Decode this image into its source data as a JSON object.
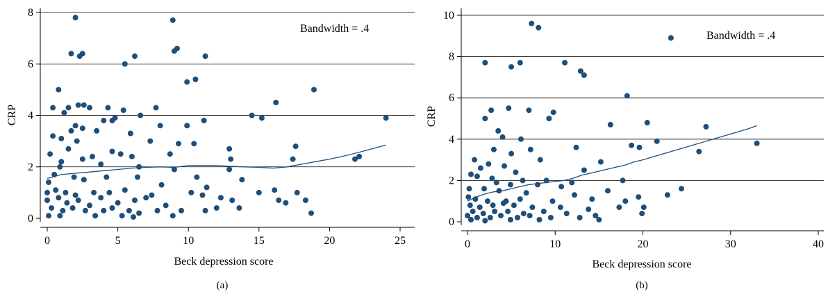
{
  "chart_data": [
    {
      "type": "scatter",
      "panel_label": "(a)",
      "xlabel": "Beck depression score",
      "ylabel": "CRP",
      "annotation": "Bandwidth = .4",
      "xlim": [
        0,
        25
      ],
      "ylim": [
        0,
        8
      ],
      "xticks": [
        0,
        5,
        10,
        15,
        20,
        25
      ],
      "yticks": [
        0,
        2,
        4,
        6,
        8
      ],
      "grid": "horizontal",
      "marker_color": "#1f4e79",
      "line_color": "#1f4e79",
      "points": [
        [
          2.0,
          7.8
        ],
        [
          8.9,
          7.7
        ],
        [
          9.2,
          6.6
        ],
        [
          9.0,
          6.5
        ],
        [
          1.7,
          6.4
        ],
        [
          2.5,
          6.4
        ],
        [
          2.3,
          6.3
        ],
        [
          6.2,
          6.3
        ],
        [
          11.2,
          6.3
        ],
        [
          5.5,
          6.0
        ],
        [
          10.5,
          5.4
        ],
        [
          9.9,
          5.3
        ],
        [
          0.8,
          5.0
        ],
        [
          18.9,
          5.0
        ],
        [
          16.2,
          4.5
        ],
        [
          2.2,
          4.4
        ],
        [
          2.6,
          4.4
        ],
        [
          0.4,
          4.3
        ],
        [
          1.5,
          4.3
        ],
        [
          3.0,
          4.3
        ],
        [
          4.3,
          4.3
        ],
        [
          5.4,
          4.2
        ],
        [
          7.7,
          4.3
        ],
        [
          1.2,
          4.1
        ],
        [
          6.6,
          4.0
        ],
        [
          14.5,
          4.0
        ],
        [
          15.2,
          3.9
        ],
        [
          24.0,
          3.9
        ],
        [
          4.8,
          3.9
        ],
        [
          11.1,
          3.8
        ],
        [
          4.6,
          3.8
        ],
        [
          4.0,
          3.8
        ],
        [
          2.0,
          3.6
        ],
        [
          8.0,
          3.6
        ],
        [
          9.9,
          3.6
        ],
        [
          1.7,
          3.4
        ],
        [
          2.5,
          3.5
        ],
        [
          3.5,
          3.4
        ],
        [
          5.9,
          3.3
        ],
        [
          0.4,
          3.2
        ],
        [
          1.0,
          3.1
        ],
        [
          2.1,
          3.0
        ],
        [
          7.3,
          3.0
        ],
        [
          10.4,
          2.9
        ],
        [
          9.3,
          2.9
        ],
        [
          17.6,
          2.8
        ],
        [
          0.2,
          2.5
        ],
        [
          1.5,
          2.7
        ],
        [
          4.6,
          2.6
        ],
        [
          5.2,
          2.5
        ],
        [
          8.7,
          2.5
        ],
        [
          12.9,
          2.7
        ],
        [
          3.2,
          2.4
        ],
        [
          6.0,
          2.4
        ],
        [
          2.5,
          2.3
        ],
        [
          1.0,
          2.2
        ],
        [
          13.0,
          2.3
        ],
        [
          17.4,
          2.3
        ],
        [
          22.1,
          2.4
        ],
        [
          21.8,
          2.3
        ],
        [
          0.9,
          2.0
        ],
        [
          3.8,
          2.1
        ],
        [
          6.5,
          2.0
        ],
        [
          9.0,
          1.9
        ],
        [
          12.9,
          1.9
        ],
        [
          10.6,
          1.6
        ],
        [
          0.1,
          1.4
        ],
        [
          0.5,
          1.7
        ],
        [
          1.9,
          1.6
        ],
        [
          2.6,
          1.5
        ],
        [
          4.2,
          1.6
        ],
        [
          6.4,
          1.6
        ],
        [
          8.1,
          1.3
        ],
        [
          11.3,
          1.2
        ],
        [
          13.8,
          1.5
        ],
        [
          0.0,
          1.0
        ],
        [
          0.6,
          1.1
        ],
        [
          1.3,
          1.0
        ],
        [
          2.0,
          0.9
        ],
        [
          3.3,
          1.0
        ],
        [
          4.4,
          1.0
        ],
        [
          5.5,
          1.1
        ],
        [
          7.4,
          0.9
        ],
        [
          10.2,
          1.0
        ],
        [
          15.0,
          1.0
        ],
        [
          16.1,
          1.1
        ],
        [
          17.7,
          1.0
        ],
        [
          0.0,
          0.7
        ],
        [
          0.8,
          0.8
        ],
        [
          1.4,
          0.6
        ],
        [
          2.2,
          0.7
        ],
        [
          3.0,
          0.5
        ],
        [
          3.8,
          0.8
        ],
        [
          5.0,
          0.6
        ],
        [
          6.2,
          0.7
        ],
        [
          7.0,
          0.8
        ],
        [
          8.4,
          0.5
        ],
        [
          11.0,
          0.9
        ],
        [
          12.3,
          0.8
        ],
        [
          13.1,
          0.7
        ],
        [
          16.4,
          0.7
        ],
        [
          16.9,
          0.6
        ],
        [
          18.3,
          0.7
        ],
        [
          0.3,
          0.4
        ],
        [
          1.1,
          0.3
        ],
        [
          1.8,
          0.4
        ],
        [
          2.7,
          0.3
        ],
        [
          4.0,
          0.3
        ],
        [
          4.6,
          0.4
        ],
        [
          5.8,
          0.3
        ],
        [
          6.5,
          0.2
        ],
        [
          7.8,
          0.3
        ],
        [
          9.5,
          0.3
        ],
        [
          11.2,
          0.3
        ],
        [
          12.0,
          0.4
        ],
        [
          13.6,
          0.4
        ],
        [
          18.7,
          0.2
        ],
        [
          0.1,
          0.1
        ],
        [
          0.9,
          0.1
        ],
        [
          3.4,
          0.1
        ],
        [
          5.3,
          0.1
        ],
        [
          6.1,
          0.05
        ],
        [
          8.9,
          0.1
        ]
      ],
      "smooth": [
        [
          0.0,
          1.55
        ],
        [
          1.0,
          1.7
        ],
        [
          2.0,
          1.75
        ],
        [
          3.0,
          1.8
        ],
        [
          4.0,
          1.85
        ],
        [
          5.0,
          1.9
        ],
        [
          6.0,
          1.95
        ],
        [
          7.0,
          1.98
        ],
        [
          8.0,
          2.0
        ],
        [
          9.0,
          1.98
        ],
        [
          10.0,
          2.05
        ],
        [
          11.0,
          2.05
        ],
        [
          12.0,
          2.05
        ],
        [
          13.0,
          2.02
        ],
        [
          14.0,
          2.0
        ],
        [
          15.0,
          1.98
        ],
        [
          16.0,
          1.95
        ],
        [
          17.0,
          2.0
        ],
        [
          18.0,
          2.1
        ],
        [
          19.0,
          2.2
        ],
        [
          20.0,
          2.3
        ],
        [
          21.0,
          2.42
        ],
        [
          22.0,
          2.55
        ],
        [
          23.0,
          2.7
        ],
        [
          24.0,
          2.85
        ]
      ]
    },
    {
      "type": "scatter",
      "panel_label": "(b)",
      "xlabel": "Beck depression score",
      "ylabel": "CRP",
      "annotation": "Bandwidth = .4",
      "xlim": [
        0,
        40
      ],
      "ylim": [
        0,
        10
      ],
      "xticks": [
        0,
        10,
        20,
        30,
        40
      ],
      "yticks": [
        0,
        2,
        4,
        6,
        8,
        10
      ],
      "grid": "horizontal",
      "marker_color": "#1f4e79",
      "line_color": "#1f4e79",
      "points": [
        [
          7.3,
          9.6
        ],
        [
          8.1,
          9.4
        ],
        [
          23.2,
          8.9
        ],
        [
          2.0,
          7.7
        ],
        [
          5.0,
          7.5
        ],
        [
          6.0,
          7.7
        ],
        [
          11.1,
          7.7
        ],
        [
          12.9,
          7.3
        ],
        [
          13.3,
          7.1
        ],
        [
          18.2,
          6.1
        ],
        [
          2.7,
          5.4
        ],
        [
          4.7,
          5.5
        ],
        [
          7.0,
          5.4
        ],
        [
          9.8,
          5.3
        ],
        [
          9.3,
          5.0
        ],
        [
          2.0,
          5.0
        ],
        [
          20.5,
          4.8
        ],
        [
          16.3,
          4.7
        ],
        [
          27.2,
          4.6
        ],
        [
          3.5,
          4.4
        ],
        [
          4.0,
          4.1
        ],
        [
          6.1,
          4.0
        ],
        [
          18.7,
          3.7
        ],
        [
          19.6,
          3.6
        ],
        [
          12.4,
          3.6
        ],
        [
          7.2,
          3.5
        ],
        [
          21.6,
          3.9
        ],
        [
          33.0,
          3.8
        ],
        [
          26.4,
          3.4
        ],
        [
          3.0,
          3.5
        ],
        [
          5.0,
          3.3
        ],
        [
          8.3,
          3.0
        ],
        [
          0.8,
          3.0
        ],
        [
          2.4,
          2.8
        ],
        [
          15.2,
          2.9
        ],
        [
          1.5,
          2.6
        ],
        [
          4.2,
          2.7
        ],
        [
          13.3,
          2.5
        ],
        [
          0.4,
          2.3
        ],
        [
          1.1,
          2.2
        ],
        [
          2.8,
          2.1
        ],
        [
          5.5,
          2.4
        ],
        [
          6.3,
          2.0
        ],
        [
          9.0,
          2.0
        ],
        [
          11.9,
          1.9
        ],
        [
          17.7,
          2.0
        ],
        [
          3.3,
          1.9
        ],
        [
          4.9,
          1.8
        ],
        [
          8.0,
          1.8
        ],
        [
          10.7,
          1.7
        ],
        [
          16.0,
          1.5
        ],
        [
          24.4,
          1.6
        ],
        [
          0.2,
          1.6
        ],
        [
          1.9,
          1.6
        ],
        [
          3.6,
          1.5
        ],
        [
          6.7,
          1.4
        ],
        [
          12.2,
          1.3
        ],
        [
          19.5,
          1.2
        ],
        [
          22.8,
          1.3
        ],
        [
          0.1,
          1.2
        ],
        [
          0.9,
          1.1
        ],
        [
          2.3,
          1.0
        ],
        [
          4.4,
          1.0
        ],
        [
          6.0,
          1.1
        ],
        [
          9.7,
          1.0
        ],
        [
          14.2,
          1.1
        ],
        [
          18.0,
          1.0
        ],
        [
          0.3,
          0.8
        ],
        [
          1.4,
          0.7
        ],
        [
          2.9,
          0.8
        ],
        [
          4.1,
          0.9
        ],
        [
          5.3,
          0.8
        ],
        [
          7.4,
          0.7
        ],
        [
          10.6,
          0.7
        ],
        [
          13.8,
          0.6
        ],
        [
          17.3,
          0.7
        ],
        [
          20.1,
          0.7
        ],
        [
          0.6,
          0.5
        ],
        [
          1.8,
          0.4
        ],
        [
          3.1,
          0.5
        ],
        [
          4.6,
          0.5
        ],
        [
          6.4,
          0.4
        ],
        [
          8.7,
          0.5
        ],
        [
          11.3,
          0.4
        ],
        [
          14.6,
          0.3
        ],
        [
          19.9,
          0.4
        ],
        [
          0.0,
          0.3
        ],
        [
          1.1,
          0.2
        ],
        [
          2.6,
          0.2
        ],
        [
          3.8,
          0.3
        ],
        [
          5.7,
          0.2
        ],
        [
          7.1,
          0.3
        ],
        [
          9.5,
          0.2
        ],
        [
          12.8,
          0.2
        ],
        [
          15.0,
          0.1
        ],
        [
          0.4,
          0.1
        ],
        [
          2.0,
          0.05
        ],
        [
          4.9,
          0.1
        ],
        [
          8.2,
          0.1
        ]
      ],
      "smooth": [
        [
          0.0,
          1.0
        ],
        [
          1.0,
          1.2
        ],
        [
          2.0,
          1.35
        ],
        [
          3.0,
          1.45
        ],
        [
          4.0,
          1.5
        ],
        [
          5.0,
          1.6
        ],
        [
          6.0,
          1.7
        ],
        [
          7.0,
          1.8
        ],
        [
          8.0,
          1.85
        ],
        [
          9.0,
          1.9
        ],
        [
          10.0,
          1.95
        ],
        [
          11.0,
          2.0
        ],
        [
          12.0,
          2.1
        ],
        [
          13.0,
          2.25
        ],
        [
          14.0,
          2.35
        ],
        [
          15.0,
          2.45
        ],
        [
          16.0,
          2.55
        ],
        [
          17.0,
          2.65
        ],
        [
          18.0,
          2.75
        ],
        [
          19.0,
          2.9
        ],
        [
          20.0,
          3.0
        ],
        [
          22.0,
          3.25
        ],
        [
          24.0,
          3.5
        ],
        [
          26.0,
          3.75
        ],
        [
          28.0,
          4.0
        ],
        [
          30.0,
          4.25
        ],
        [
          32.0,
          4.5
        ],
        [
          33.0,
          4.65
        ]
      ]
    }
  ]
}
